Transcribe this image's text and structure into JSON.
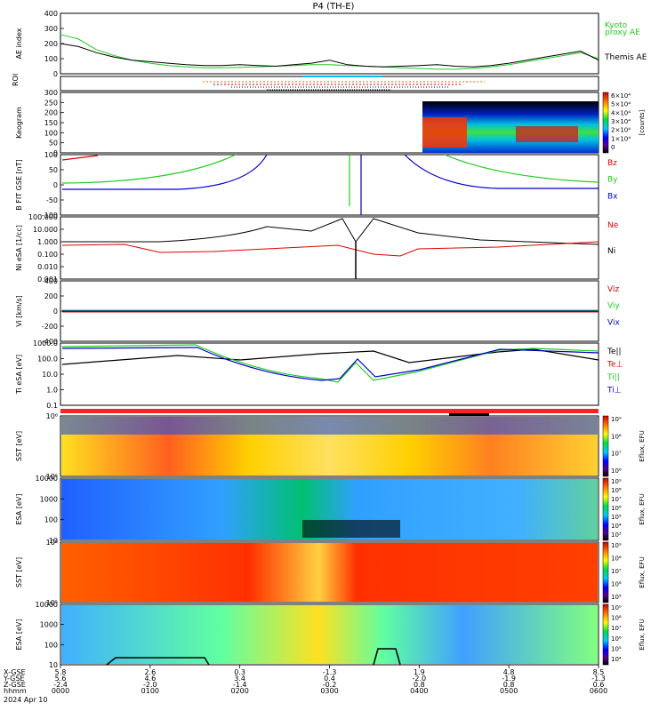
{
  "chart_data": [
    {
      "type": "line",
      "title": "P4 (TH-E)",
      "ylabel": "AE index",
      "ylim": [
        0,
        400
      ],
      "yticks": [
        "400",
        "300",
        "200",
        "100",
        "0"
      ],
      "x": [
        0,
        20,
        40,
        60,
        80,
        100,
        120,
        140,
        160,
        180,
        200,
        220,
        240,
        260,
        280,
        300,
        320,
        340,
        360,
        380,
        400,
        420,
        440,
        460,
        480,
        500,
        520,
        540,
        560,
        580,
        600
      ],
      "series": [
        {
          "name": "Kyoto proxy AE",
          "color": "#22cc22",
          "values": [
            260,
            230,
            160,
            120,
            90,
            70,
            55,
            45,
            40,
            40,
            42,
            45,
            50,
            55,
            60,
            60,
            55,
            50,
            45,
            40,
            35,
            30,
            30,
            35,
            45,
            60,
            80,
            100,
            120,
            140,
            100
          ]
        },
        {
          "name": "Themis AE",
          "color": "#000000",
          "values": [
            200,
            180,
            140,
            110,
            90,
            80,
            70,
            60,
            55,
            55,
            60,
            55,
            50,
            60,
            70,
            90,
            60,
            50,
            45,
            50,
            55,
            60,
            50,
            45,
            55,
            70,
            90,
            110,
            130,
            150,
            90
          ]
        }
      ]
    },
    {
      "type": "line",
      "ylabel": "B FIT GSE [nT]",
      "ylim": [
        -100,
        100
      ],
      "yticks": [
        "100",
        "50",
        "0",
        "-50",
        "-100"
      ],
      "series": [
        {
          "name": "Bz",
          "color": "#dd0000"
        },
        {
          "name": "By",
          "color": "#22cc22"
        },
        {
          "name": "Bx",
          "color": "#0000cc"
        }
      ]
    },
    {
      "type": "line",
      "ylabel": "Ni eSA [1/cc]",
      "ylim": [
        0.001,
        100
      ],
      "yticks": [
        "100.000",
        "10.000",
        "1.000",
        "0.100",
        "0.010",
        "0.001"
      ],
      "series": [
        {
          "name": "Ne",
          "color": "#dd0000"
        },
        {
          "name": "Ni",
          "color": "#000000"
        }
      ]
    },
    {
      "type": "line",
      "ylabel": "Vi [km/s]",
      "ylim": [
        -400,
        400
      ],
      "yticks": [
        "400",
        "200",
        "0",
        "-200",
        "-400"
      ],
      "series": [
        {
          "name": "Viz",
          "color": "#dd0000"
        },
        {
          "name": "Viy",
          "color": "#22cc22"
        },
        {
          "name": "Vix",
          "color": "#0000cc"
        }
      ]
    },
    {
      "type": "line",
      "ylabel": "Ti eSA [eV]",
      "ylim": [
        0.1,
        1000
      ],
      "yticks": [
        "1000.0",
        "100.0",
        "10.0",
        "1.0",
        "0.1"
      ],
      "series": [
        {
          "name": "Te||",
          "color": "#000000"
        },
        {
          "name": "Te⊥",
          "color": "#dd0000"
        },
        {
          "name": "Ti||",
          "color": "#22cc22"
        },
        {
          "name": "Ti⊥",
          "color": "#0000cc"
        }
      ]
    },
    {
      "type": "heatmap",
      "ylabel": "Keogram",
      "yticks": [
        "300",
        "250",
        "200",
        "150",
        "100",
        "50",
        "0"
      ],
      "colorbar": {
        "label": "[counts]",
        "ticks": [
          "6×10⁴",
          "5×10⁴",
          "4×10⁴",
          "3×10⁴",
          "2×10⁴",
          "1×10⁴",
          "0"
        ]
      }
    },
    {
      "type": "heatmap",
      "ylabel": "SST [eV]",
      "yticks": [
        "10⁶",
        "10⁵"
      ],
      "colorbar": {
        "label": "Eflux, EFU",
        "ticks": [
          "10⁹",
          "10⁸",
          "10⁷",
          "10⁶"
        ]
      }
    },
    {
      "type": "heatmap",
      "ylabel": "ESA [eV]",
      "yticks": [
        "10000",
        "1000",
        "100",
        "10"
      ],
      "colorbar": {
        "label": "Eflux, EFU",
        "ticks": [
          "10⁹",
          "10⁸",
          "10⁷",
          "10⁶",
          "10⁵",
          "10⁴",
          "10³"
        ]
      }
    },
    {
      "type": "heatmap",
      "ylabel": "SST [eV]",
      "yticks": [
        "10⁶",
        "10⁵"
      ],
      "colorbar": {
        "label": "Eflux, EFU",
        "ticks": [
          "10⁹",
          "10⁸",
          "10⁷",
          "10⁶",
          "10⁵"
        ]
      }
    },
    {
      "type": "heatmap",
      "ylabel": "ESA [eV]",
      "yticks": [
        "10000",
        "1000",
        "100",
        "10"
      ],
      "colorbar": {
        "label": "Eflux, EFU",
        "ticks": [
          "10⁹",
          "10⁸",
          "10⁷",
          "10⁶",
          "10⁵",
          "10⁴"
        ]
      }
    }
  ],
  "labels": {
    "title": "P4 (TH-E)",
    "legend_kyoto": "Kyoto",
    "legend_proxy": "proxy AE",
    "legend_themis": "Themis AE",
    "roi_label": "ROI"
  },
  "x_axis": {
    "row_names": [
      "X-GSE",
      "Y-GSE",
      "Z-GSE",
      "hhmm",
      "2024 Apr 10"
    ],
    "columns": [
      {
        "x": "5.8",
        "y": "5.6",
        "z": "-2.4",
        "t": "0000"
      },
      {
        "x": "2.6",
        "y": "4.6",
        "z": "-2.0",
        "t": "0100"
      },
      {
        "x": "0.3",
        "y": "3.4",
        "z": "-1.4",
        "t": "0200"
      },
      {
        "x": "-1.3",
        "y": "0.4",
        "z": "-0.2",
        "t": "0300"
      },
      {
        "x": "1.9",
        "y": "-2.0",
        "z": "0.8",
        "t": "0400"
      },
      {
        "x": "4.8",
        "y": "-1.9",
        "z": "0.8",
        "t": "0500"
      },
      {
        "x": "8.5",
        "y": "-1.3",
        "z": "0.6",
        "t": "0600"
      }
    ]
  }
}
